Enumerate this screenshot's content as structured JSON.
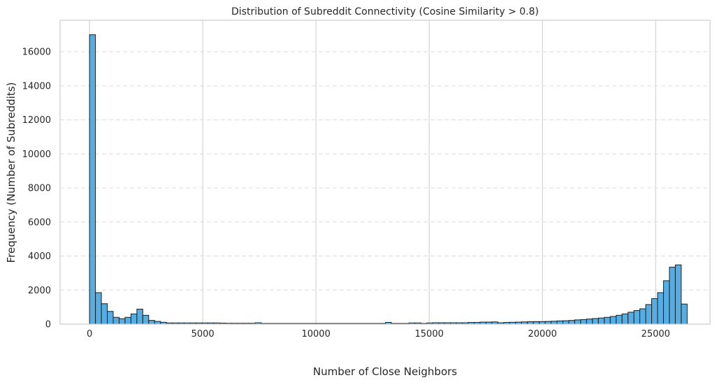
{
  "chart_data": {
    "type": "bar",
    "title": "Distribution of Subreddit Connectivity (Cosine Similarity > 0.8)",
    "xlabel": "Number of Close Neighbors",
    "ylabel": "Frequency (Number of Subreddits)",
    "xlim": [
      -1300,
      27400
    ],
    "ylim": [
      0,
      17850
    ],
    "xticks": [
      0,
      5000,
      10000,
      15000,
      20000,
      25000
    ],
    "yticks": [
      0,
      2000,
      4000,
      6000,
      8000,
      10000,
      12000,
      14000,
      16000
    ],
    "bin_width": 261.3,
    "bin_start": 0,
    "grid": {
      "x": "solid",
      "y": "dashed"
    },
    "bar_color": "#56ade1",
    "edge_color": "#1f1f1f",
    "values": [
      17000,
      1850,
      1200,
      750,
      400,
      320,
      400,
      600,
      880,
      520,
      220,
      160,
      110,
      70,
      70,
      70,
      70,
      70,
      70,
      70,
      70,
      70,
      60,
      50,
      50,
      50,
      50,
      50,
      80,
      40,
      40,
      40,
      40,
      40,
      40,
      40,
      40,
      40,
      40,
      40,
      40,
      40,
      40,
      40,
      40,
      40,
      40,
      40,
      40,
      40,
      100,
      40,
      40,
      40,
      70,
      70,
      40,
      70,
      80,
      80,
      80,
      80,
      80,
      80,
      100,
      100,
      120,
      120,
      130,
      80,
      100,
      110,
      120,
      130,
      140,
      150,
      150,
      160,
      170,
      190,
      200,
      220,
      250,
      270,
      300,
      330,
      360,
      400,
      450,
      520,
      600,
      700,
      800,
      900,
      1150,
      1500,
      1850,
      2550,
      3350,
      3480,
      1180
    ]
  }
}
